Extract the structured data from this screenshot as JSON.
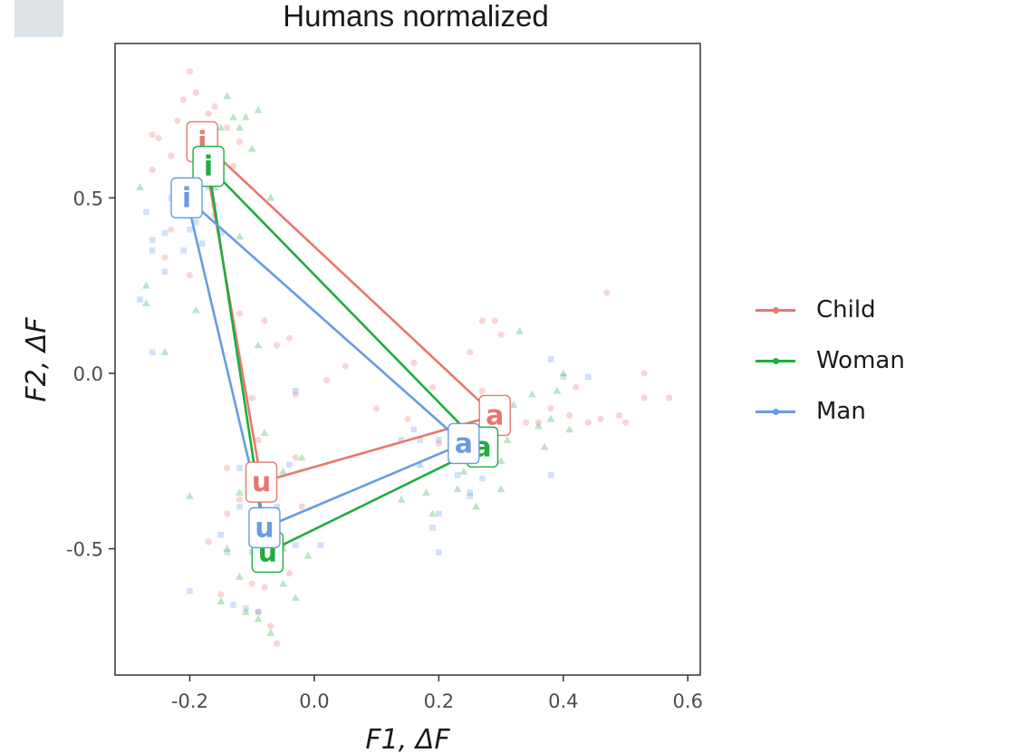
{
  "header": {
    "corner_widget": ""
  },
  "chart_data": {
    "type": "scatter",
    "title": "Humans normalized",
    "xlabel": "F1, ΔF",
    "ylabel": "F2, ΔF",
    "xlim": [
      -0.32,
      0.62
    ],
    "ylim": [
      -0.86,
      0.94
    ],
    "x_ticks": [
      -0.2,
      0.0,
      0.2,
      0.4,
      0.6
    ],
    "x_tick_labels": [
      "-0.2",
      "0.0",
      "0.2",
      "0.4",
      "0.6"
    ],
    "y_ticks": [
      -0.5,
      0.0,
      0.5
    ],
    "y_tick_labels": [
      "-0.5",
      "0.0",
      "0.5"
    ],
    "grid": false,
    "legend_position": "right",
    "series": [
      {
        "name": "Child",
        "color": "#e8776f",
        "marker": "circle",
        "vowels": [
          {
            "label": "i",
            "x": -0.18,
            "y": 0.66
          },
          {
            "label": "a",
            "x": 0.29,
            "y": -0.12
          },
          {
            "label": "u",
            "x": -0.085,
            "y": -0.31
          }
        ],
        "points": [
          [
            -0.2,
            0.86
          ],
          [
            -0.21,
            0.78
          ],
          [
            -0.19,
            0.8
          ],
          [
            -0.17,
            0.74
          ],
          [
            -0.16,
            0.76
          ],
          [
            -0.22,
            0.72
          ],
          [
            -0.25,
            0.67
          ],
          [
            -0.18,
            0.71
          ],
          [
            -0.14,
            0.7
          ],
          [
            -0.26,
            0.58
          ],
          [
            -0.23,
            0.62
          ],
          [
            -0.2,
            0.28
          ],
          [
            -0.24,
            0.33
          ],
          [
            -0.23,
            0.41
          ],
          [
            -0.16,
            0.48
          ],
          [
            -0.13,
            0.59
          ],
          [
            -0.08,
            0.15
          ],
          [
            -0.06,
            0.08
          ],
          [
            -0.04,
            0.1
          ],
          [
            -0.03,
            -0.06
          ],
          [
            -0.1,
            -0.07
          ],
          [
            -0.09,
            -0.19
          ],
          [
            -0.03,
            -0.24
          ],
          [
            0.02,
            -0.02
          ],
          [
            0.05,
            0.02
          ],
          [
            0.1,
            -0.1
          ],
          [
            0.15,
            -0.13
          ],
          [
            0.16,
            0.03
          ],
          [
            0.19,
            -0.04
          ],
          [
            0.22,
            -0.17
          ],
          [
            0.25,
            0.06
          ],
          [
            0.27,
            -0.05
          ],
          [
            0.27,
            0.15
          ],
          [
            0.29,
            0.15
          ],
          [
            0.3,
            0.11
          ],
          [
            0.31,
            -0.1
          ],
          [
            0.34,
            -0.14
          ],
          [
            0.38,
            -0.1
          ],
          [
            0.41,
            -0.12
          ],
          [
            0.44,
            -0.14
          ],
          [
            0.46,
            -0.13
          ],
          [
            0.47,
            0.23
          ],
          [
            0.49,
            -0.12
          ],
          [
            0.5,
            -0.14
          ],
          [
            0.53,
            0.0
          ],
          [
            0.53,
            -0.07
          ],
          [
            0.57,
            -0.07
          ],
          [
            0.42,
            -0.04
          ],
          [
            0.36,
            -0.14
          ],
          [
            -0.14,
            -0.27
          ],
          [
            -0.14,
            -0.4
          ],
          [
            -0.12,
            -0.36
          ],
          [
            -0.1,
            -0.6
          ],
          [
            -0.09,
            -0.68
          ],
          [
            -0.08,
            -0.61
          ],
          [
            -0.06,
            -0.77
          ],
          [
            -0.07,
            -0.72
          ],
          [
            -0.15,
            -0.63
          ],
          [
            -0.05,
            -0.49
          ],
          [
            -0.04,
            -0.57
          ],
          [
            -0.02,
            -0.38
          ],
          [
            -0.17,
            -0.48
          ],
          [
            -0.12,
            0.66
          ],
          [
            -0.12,
            0.17
          ],
          [
            -0.26,
            0.68
          ],
          [
            0.2,
            -0.2
          ]
        ]
      },
      {
        "name": "Woman",
        "color": "#1fad3e",
        "marker": "triangle",
        "vowels": [
          {
            "label": "i",
            "x": -0.17,
            "y": 0.59
          },
          {
            "label": "a",
            "x": 0.27,
            "y": -0.21
          },
          {
            "label": "u",
            "x": -0.075,
            "y": -0.51
          }
        ],
        "points": [
          [
            -0.28,
            0.53
          ],
          [
            -0.27,
            0.25
          ],
          [
            -0.24,
            0.06
          ],
          [
            -0.22,
            0.47
          ],
          [
            -0.19,
            0.18
          ],
          [
            -0.17,
            0.66
          ],
          [
            -0.16,
            0.53
          ],
          [
            -0.15,
            0.7
          ],
          [
            -0.14,
            0.79
          ],
          [
            -0.13,
            0.73
          ],
          [
            -0.12,
            0.7
          ],
          [
            -0.11,
            0.73
          ],
          [
            -0.1,
            0.64
          ],
          [
            -0.09,
            0.75
          ],
          [
            -0.07,
            0.5
          ],
          [
            -0.12,
            0.39
          ],
          [
            -0.09,
            0.08
          ],
          [
            -0.08,
            -0.17
          ],
          [
            -0.05,
            -0.28
          ],
          [
            -0.05,
            -0.5
          ],
          [
            -0.02,
            -0.24
          ],
          [
            -0.01,
            -0.52
          ],
          [
            -0.1,
            -0.48
          ],
          [
            -0.12,
            -0.58
          ],
          [
            -0.14,
            -0.5
          ],
          [
            -0.15,
            -0.65
          ],
          [
            -0.11,
            -0.68
          ],
          [
            -0.09,
            -0.7
          ],
          [
            -0.07,
            -0.74
          ],
          [
            -0.05,
            -0.6
          ],
          [
            -0.03,
            -0.64
          ],
          [
            -0.2,
            -0.35
          ],
          [
            -0.27,
            0.2
          ],
          [
            0.14,
            -0.36
          ],
          [
            0.18,
            -0.34
          ],
          [
            0.19,
            -0.4
          ],
          [
            0.23,
            -0.33
          ],
          [
            0.26,
            -0.38
          ],
          [
            0.24,
            -0.28
          ],
          [
            0.3,
            -0.25
          ],
          [
            0.31,
            -0.19
          ],
          [
            0.32,
            -0.09
          ],
          [
            0.35,
            -0.06
          ],
          [
            0.36,
            -0.15
          ],
          [
            0.37,
            -0.21
          ],
          [
            0.38,
            -0.13
          ],
          [
            0.39,
            -0.05
          ],
          [
            0.4,
            0.0
          ],
          [
            0.33,
            0.12
          ],
          [
            0.3,
            -0.33
          ],
          [
            0.22,
            -0.23
          ],
          [
            0.17,
            -0.26
          ],
          [
            0.41,
            -0.16
          ],
          [
            -0.12,
            -0.34
          ]
        ]
      },
      {
        "name": "Man",
        "color": "#679ce4",
        "marker": "square",
        "vowels": [
          {
            "label": "i",
            "x": -0.205,
            "y": 0.5
          },
          {
            "label": "a",
            "x": 0.24,
            "y": -0.2
          },
          {
            "label": "u",
            "x": -0.08,
            "y": -0.44
          }
        ],
        "points": [
          [
            -0.27,
            0.46
          ],
          [
            -0.26,
            0.38
          ],
          [
            -0.24,
            0.4
          ],
          [
            -0.23,
            0.5
          ],
          [
            -0.22,
            0.55
          ],
          [
            -0.2,
            0.41
          ],
          [
            -0.19,
            0.43
          ],
          [
            -0.18,
            0.37
          ],
          [
            -0.17,
            0.53
          ],
          [
            -0.16,
            0.45
          ],
          [
            -0.21,
            0.35
          ],
          [
            -0.26,
            0.35
          ],
          [
            -0.28,
            0.21
          ],
          [
            -0.26,
            0.06
          ],
          [
            -0.24,
            0.29
          ],
          [
            -0.15,
            0.4
          ],
          [
            -0.17,
            0.6
          ],
          [
            -0.12,
            -0.38
          ],
          [
            -0.15,
            -0.46
          ],
          [
            -0.14,
            -0.51
          ],
          [
            -0.1,
            -0.51
          ],
          [
            -0.13,
            -0.66
          ],
          [
            -0.11,
            -0.67
          ],
          [
            -0.09,
            -0.68
          ],
          [
            -0.2,
            -0.62
          ],
          [
            -0.03,
            -0.49
          ],
          [
            0.01,
            -0.49
          ],
          [
            -0.06,
            -0.38
          ],
          [
            -0.04,
            -0.26
          ],
          [
            -0.03,
            -0.05
          ],
          [
            0.14,
            -0.19
          ],
          [
            0.17,
            -0.19
          ],
          [
            0.2,
            -0.19
          ],
          [
            0.22,
            -0.24
          ],
          [
            0.23,
            -0.29
          ],
          [
            0.25,
            -0.34
          ],
          [
            0.27,
            -0.3
          ],
          [
            0.25,
            -0.35
          ],
          [
            0.2,
            -0.4
          ],
          [
            0.19,
            -0.44
          ],
          [
            0.2,
            -0.51
          ],
          [
            0.38,
            -0.29
          ],
          [
            0.4,
            -0.01
          ],
          [
            0.44,
            -0.01
          ],
          [
            0.38,
            0.04
          ],
          [
            0.16,
            -0.16
          ],
          [
            -0.12,
            -0.27
          ]
        ]
      }
    ]
  }
}
